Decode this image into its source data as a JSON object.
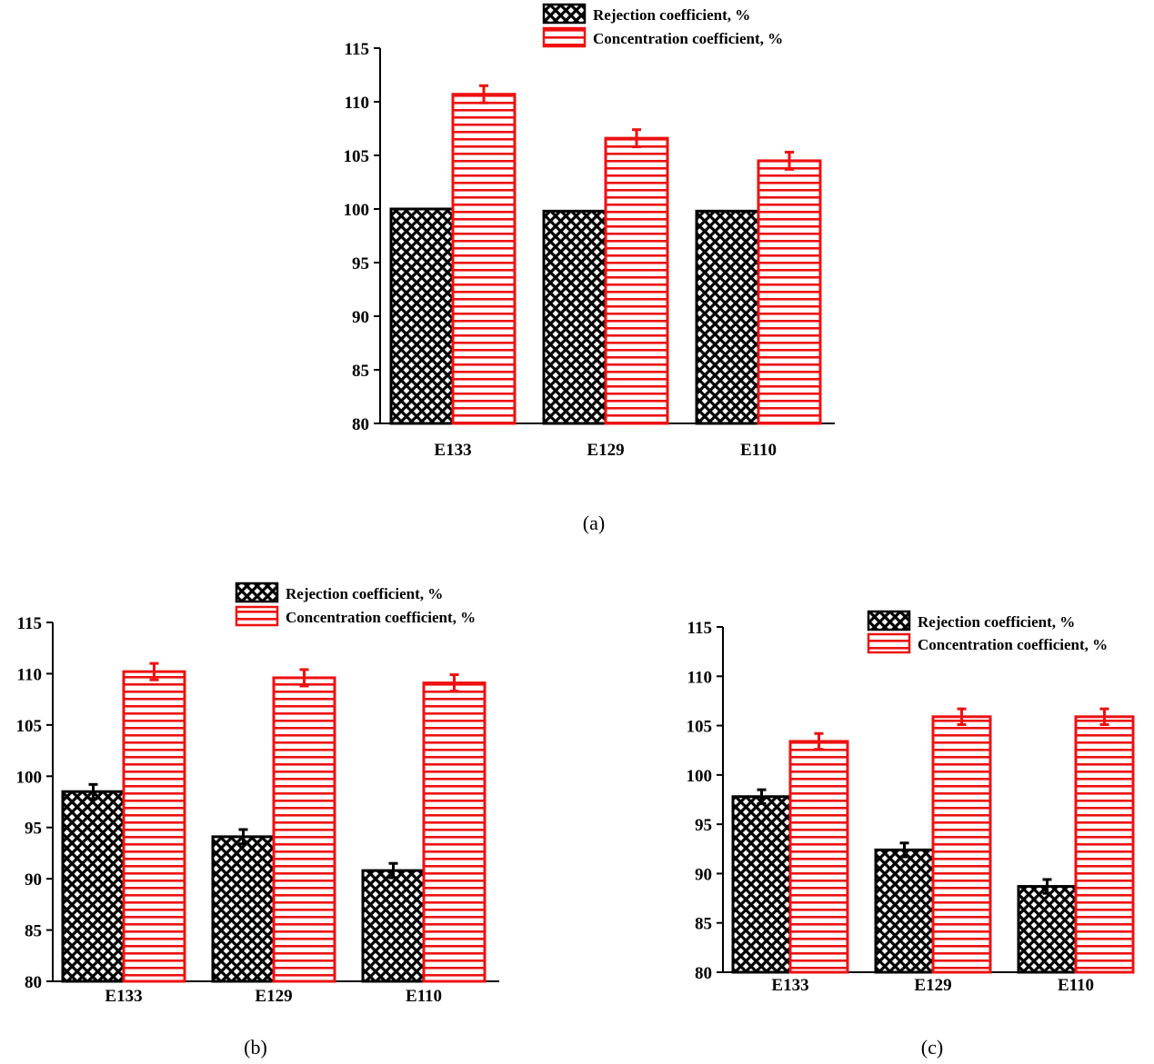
{
  "colors": {
    "rejection": "#000000",
    "concentration": "#ee1111",
    "background": "#ffffff"
  },
  "chart_data": [
    {
      "id": "a",
      "type": "bar",
      "caption": "(a)",
      "categories": [
        "E133",
        "E129",
        "E110"
      ],
      "ylim": [
        80,
        115
      ],
      "yticks": [
        80,
        85,
        90,
        95,
        100,
        105,
        110,
        115
      ],
      "legend_position": "top-right",
      "series": [
        {
          "name": "Rejection coefficient, %",
          "pattern": "crosshatch",
          "values": [
            100.0,
            99.8,
            99.8
          ],
          "errors": [
            0,
            0,
            0
          ]
        },
        {
          "name": "Concentration coefficient, %",
          "pattern": "horizontal-stripes",
          "values": [
            110.7,
            106.6,
            104.5
          ],
          "errors": [
            0.8,
            0.8,
            0.8
          ]
        }
      ]
    },
    {
      "id": "b",
      "type": "bar",
      "caption": "(b)",
      "categories": [
        "E133",
        "E129",
        "E110"
      ],
      "ylim": [
        80,
        115
      ],
      "yticks": [
        80,
        85,
        90,
        95,
        100,
        105,
        110,
        115
      ],
      "legend_position": "top-right",
      "series": [
        {
          "name": "Rejection coefficient, %",
          "pattern": "crosshatch",
          "values": [
            98.5,
            94.1,
            90.8
          ],
          "errors": [
            0.7,
            0.7,
            0.7
          ]
        },
        {
          "name": "Concentration coefficient, %",
          "pattern": "horizontal-stripes",
          "values": [
            110.2,
            109.6,
            109.1
          ],
          "errors": [
            0.8,
            0.8,
            0.8
          ]
        }
      ]
    },
    {
      "id": "c",
      "type": "bar",
      "caption": "(c)",
      "categories": [
        "E133",
        "E129",
        "E110"
      ],
      "ylim": [
        80,
        115
      ],
      "yticks": [
        80,
        85,
        90,
        95,
        100,
        105,
        110,
        115
      ],
      "legend_position": "top-right",
      "series": [
        {
          "name": "Rejection coefficient, %",
          "pattern": "crosshatch",
          "values": [
            97.8,
            92.4,
            88.7
          ],
          "errors": [
            0.7,
            0.7,
            0.7
          ]
        },
        {
          "name": "Concentration coefficient, %",
          "pattern": "horizontal-stripes",
          "values": [
            103.4,
            105.9,
            105.9
          ],
          "errors": [
            0.8,
            0.8,
            0.8
          ]
        }
      ]
    }
  ]
}
